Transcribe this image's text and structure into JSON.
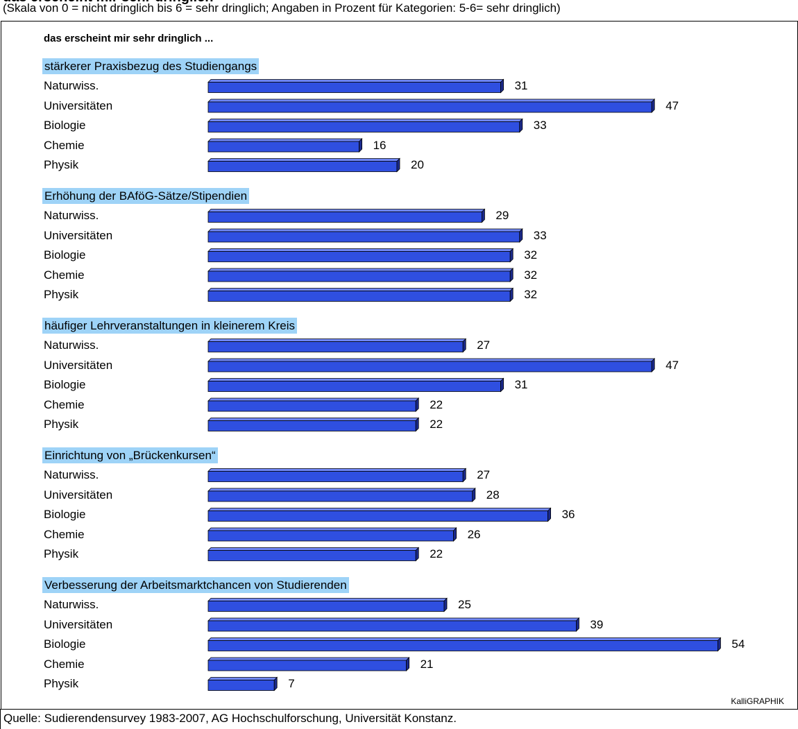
{
  "header": {
    "title": "das erscheint mir sehr dringlich",
    "subtitle": "(Skala von 0 = nicht dringlich bis 6 = sehr dringlich; Angaben in Prozent für  Kategorien: 5-6= sehr  dringlich)"
  },
  "heading": "das erscheint mir sehr dringlich ...",
  "credit": "KalliGRAPHIK",
  "source": "Quelle: Sudierendensurvey 1983-2007, AG Hochschulforschung, Universität Konstanz.",
  "colors": {
    "bar_face": "#2f4fe0",
    "bar_top": "#6f86f5",
    "bar_side": "#1b2a8c",
    "group_highlight": "#9ed3f7"
  },
  "chart_data": {
    "type": "bar",
    "orientation": "horizontal",
    "categories": [
      "Naturwiss.",
      "Universitäten",
      "Biologie",
      "Chemie",
      "Physik"
    ],
    "groups": [
      {
        "title": "stärkerer Praxisbezug des Studiengangs",
        "values": [
          31,
          47,
          33,
          16,
          20
        ]
      },
      {
        "title": "Erhöhung der BAföG-Sätze/Stipendien",
        "values": [
          29,
          33,
          32,
          32,
          32
        ]
      },
      {
        "title": "häufiger Lehrveranstaltungen in kleinerem Kreis",
        "values": [
          27,
          47,
          31,
          22,
          22
        ]
      },
      {
        "title": "Einrichtung von „Brückenkursen“",
        "values": [
          27,
          28,
          36,
          26,
          22
        ]
      },
      {
        "title": "Verbesserung der Arbeitsmarktchancen von Studierenden",
        "values": [
          25,
          39,
          54,
          21,
          7
        ]
      }
    ],
    "unit": "%"
  }
}
